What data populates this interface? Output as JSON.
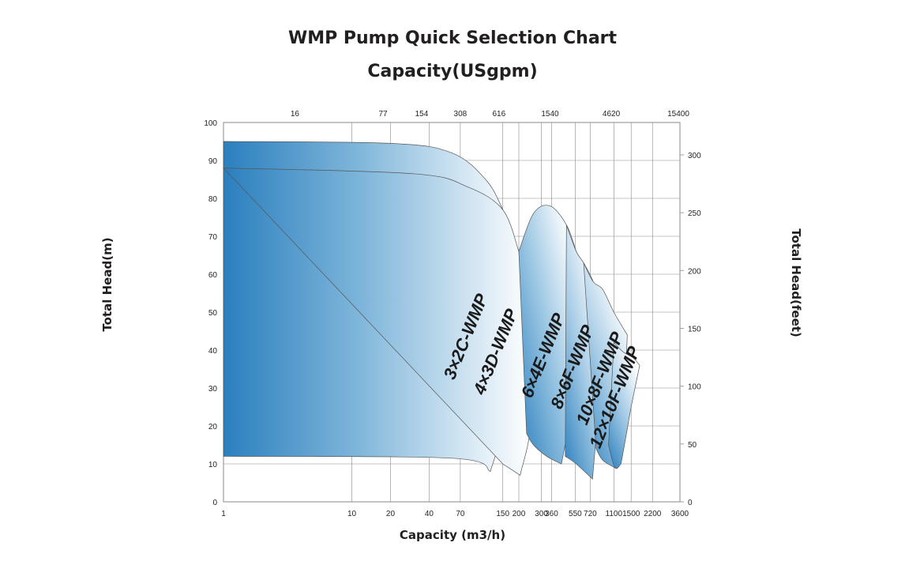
{
  "chart_data": {
    "type": "area",
    "title": "WMP Pump Quick Selection Chart",
    "subtitle": "Capacity(USgpm)",
    "xlabel": "Capacity (m3/h)",
    "ylabel": "Total Head(m)",
    "ylabel_right": "Total Head(feet)",
    "x_scale": "log",
    "xlim": [
      1,
      3600
    ],
    "ylim": [
      0,
      100
    ],
    "y_right_lim": [
      0,
      328
    ],
    "grid": true,
    "x_ticks": [
      {
        "value": 1,
        "label": "1"
      },
      {
        "value": 10,
        "label": "10"
      },
      {
        "value": 20,
        "label": "20"
      },
      {
        "value": 40,
        "label": "40"
      },
      {
        "value": 70,
        "label": "70"
      },
      {
        "value": 150,
        "label": "150"
      },
      {
        "value": 200,
        "label": "200"
      },
      {
        "value": 300,
        "label": "300"
      },
      {
        "value": 360,
        "label": "360"
      },
      {
        "value": 550,
        "label": "550"
      },
      {
        "value": 720,
        "label": "720"
      },
      {
        "value": 1100,
        "label": "1100"
      },
      {
        "value": 1500,
        "label": "1500"
      },
      {
        "value": 2200,
        "label": "2200"
      },
      {
        "value": 3600,
        "label": "3600"
      }
    ],
    "x_top_ticks": [
      {
        "value": 3.6,
        "label": "16"
      },
      {
        "value": 17.5,
        "label": "77"
      },
      {
        "value": 35,
        "label": "154"
      },
      {
        "value": 70,
        "label": "308"
      },
      {
        "value": 140,
        "label": "616"
      },
      {
        "value": 350,
        "label": "1540"
      },
      {
        "value": 1050,
        "label": "4620"
      },
      {
        "value": 3500,
        "label": "15400"
      }
    ],
    "y_ticks": [
      0,
      10,
      20,
      30,
      40,
      50,
      60,
      70,
      80,
      90,
      100
    ],
    "y_right_ticks": [
      {
        "value": 0,
        "label": "0"
      },
      {
        "value": 50,
        "label": "50"
      },
      {
        "value": 100,
        "label": "100"
      },
      {
        "value": 150,
        "label": "150"
      },
      {
        "value": 200,
        "label": "200"
      },
      {
        "value": 250,
        "label": "250"
      },
      {
        "value": 300,
        "label": "300"
      }
    ],
    "colors": {
      "dark": "#2a7fbe",
      "mid": "#8cbcdd",
      "light": "#ffffff",
      "grid": "#8a8a8a",
      "edge": "#555555"
    },
    "series": [
      {
        "name": "3×2C-WMP",
        "top": [
          [
            1,
            95
          ],
          [
            20,
            94.5
          ],
          [
            60,
            92
          ],
          [
            110,
            85
          ],
          [
            150,
            77
          ],
          [
            200,
            66
          ]
        ],
        "side": [
          [
            200,
            66
          ],
          [
            170,
            40
          ],
          [
            150,
            20
          ],
          [
            120,
            8
          ]
        ],
        "bottom": [
          [
            120,
            8
          ],
          [
            60,
            11.5
          ],
          [
            1,
            12
          ]
        ],
        "label_pos": [
          85,
          43
        ]
      },
      {
        "name": "4×3D-WMP",
        "top": [
          [
            1,
            88
          ],
          [
            30,
            86.5
          ],
          [
            80,
            83
          ],
          [
            150,
            77
          ],
          [
            200,
            66
          ]
        ],
        "side": [
          [
            200,
            66
          ],
          [
            250,
            25
          ],
          [
            205,
            7
          ]
        ],
        "bottom": [
          [
            205,
            7
          ],
          [
            150,
            10
          ]
        ],
        "label_pos": [
          145,
          39
        ]
      },
      {
        "name": "6×4E-WMP",
        "top": [
          [
            200,
            66
          ],
          [
            260,
            76
          ],
          [
            350,
            78
          ],
          [
            470,
            73
          ],
          [
            560,
            66
          ]
        ],
        "side": [
          [
            560,
            66
          ],
          [
            530,
            45
          ],
          [
            490,
            22
          ],
          [
            430,
            10
          ]
        ],
        "bottom": [
          [
            430,
            10
          ],
          [
            330,
            12
          ],
          [
            260,
            15
          ],
          [
            230,
            18
          ]
        ],
        "label_pos": [
          340,
          38
        ]
      },
      {
        "name": "8×6F-WMP",
        "top": [
          [
            470,
            73
          ],
          [
            560,
            66
          ],
          [
            640,
            63
          ],
          [
            760,
            58
          ],
          [
            870,
            51
          ]
        ],
        "side": [
          [
            870,
            51
          ],
          [
            850,
            35
          ],
          [
            810,
            20
          ],
          [
            750,
            6
          ]
        ],
        "bottom": [
          [
            750,
            6
          ],
          [
            560,
            10
          ],
          [
            460,
            12
          ]
        ],
        "label_pos": [
          575,
          35
        ]
      },
      {
        "name": "10×8F-WMP",
        "top": [
          [
            640,
            63
          ],
          [
            760,
            58
          ],
          [
            900,
            56
          ],
          [
            1100,
            50
          ],
          [
            1400,
            44
          ]
        ],
        "side": [
          [
            1400,
            44
          ],
          [
            1350,
            33
          ],
          [
            1250,
            22
          ],
          [
            1120,
            9
          ]
        ],
        "bottom": [
          [
            1120,
            9
          ],
          [
            900,
            11
          ],
          [
            800,
            14
          ]
        ],
        "label_pos": [
          940,
          32
        ]
      },
      {
        "name": "12×10F-WMP",
        "top": [
          [
            1100,
            42
          ],
          [
            1300,
            39.5
          ],
          [
            1550,
            38
          ],
          [
            1750,
            36
          ]
        ],
        "side": [
          [
            1750,
            36
          ],
          [
            1500,
            25
          ],
          [
            1380,
            18
          ],
          [
            1250,
            10
          ]
        ],
        "bottom": [
          [
            1250,
            10
          ],
          [
            1120,
            9
          ],
          [
            1000,
            15
          ]
        ],
        "label_pos": [
          1230,
          27
        ]
      }
    ]
  }
}
